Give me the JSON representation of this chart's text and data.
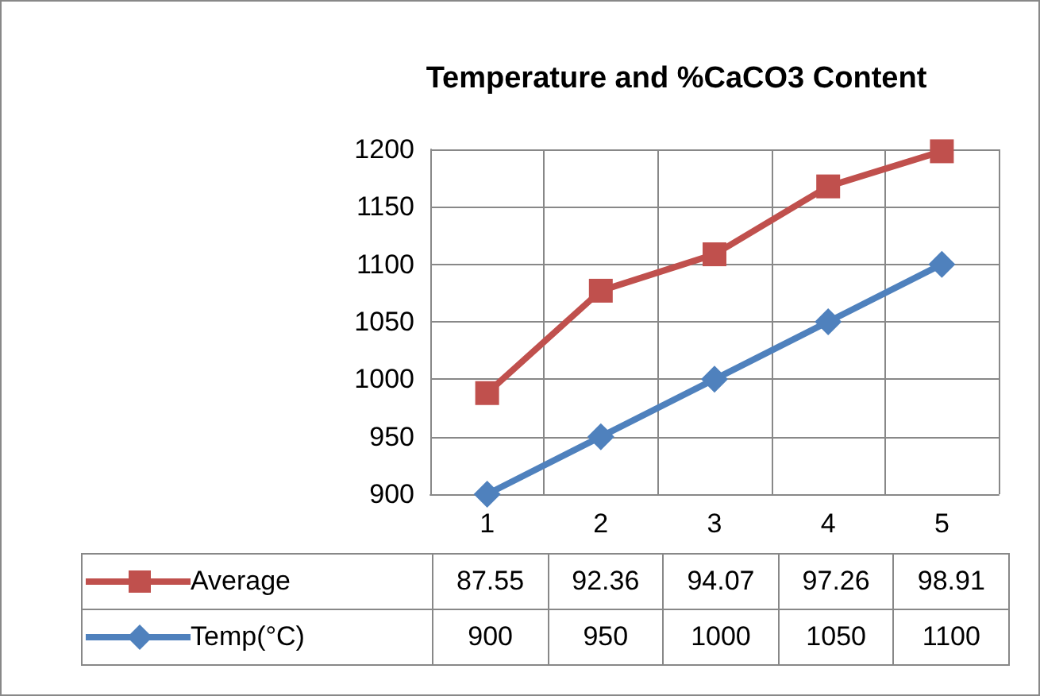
{
  "chart_data": {
    "type": "line",
    "title": "Temperature and %CaCO3 Content",
    "categories": [
      "1",
      "2",
      "3",
      "4",
      "5"
    ],
    "series": [
      {
        "name": "Average",
        "color": "#c0504d",
        "marker": "square",
        "axis": "y2",
        "values": [
          87.55,
          92.36,
          94.07,
          97.26,
          98.91
        ]
      },
      {
        "name": "Temp(°C)",
        "color": "#4f81bd",
        "marker": "diamond",
        "values": [
          900,
          950,
          1000,
          1050,
          1100
        ]
      }
    ],
    "ylim": [
      900,
      1200
    ],
    "yticks": [
      900,
      950,
      1000,
      1050,
      1100,
      1150,
      1200
    ],
    "y2lim": [
      82.8,
      99
    ],
    "grid": true,
    "legend": "bottom",
    "data_labels": true
  }
}
